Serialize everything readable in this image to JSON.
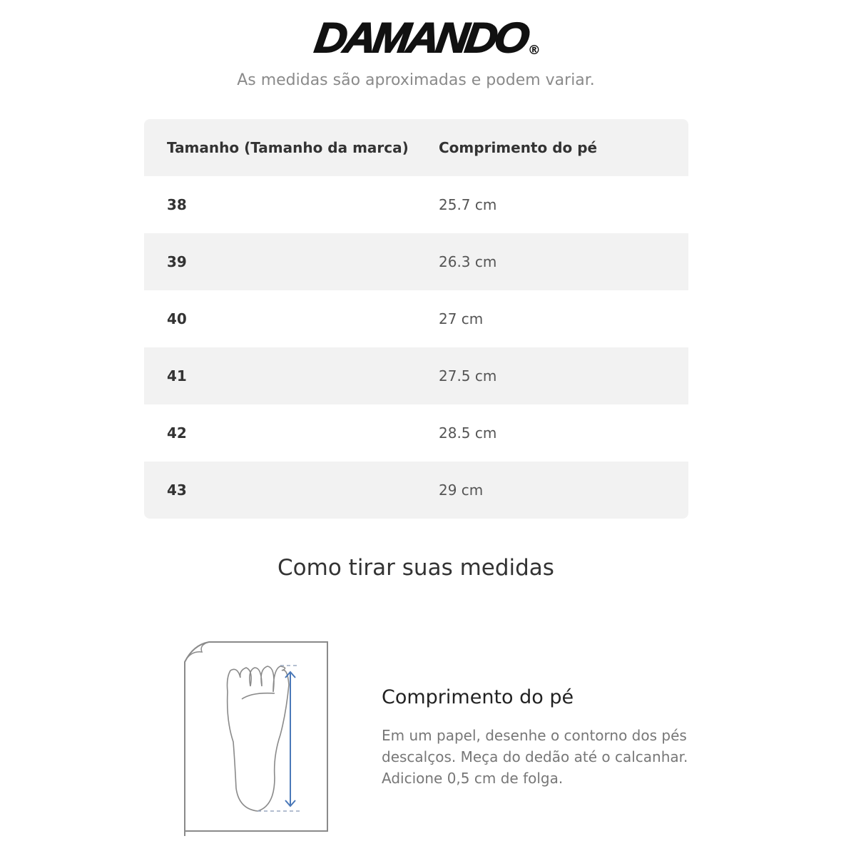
{
  "brand": {
    "logo": "DAMANDO",
    "registered": "®"
  },
  "subtitle": "As medidas são aproximadas e podem variar.",
  "table": {
    "headers": [
      "Tamanho (Tamanho da marca)",
      "Comprimento do pé"
    ],
    "rows": [
      {
        "size": "38",
        "length": "25.7 cm"
      },
      {
        "size": "39",
        "length": "26.3 cm"
      },
      {
        "size": "40",
        "length": "27 cm"
      },
      {
        "size": "41",
        "length": "27.5 cm"
      },
      {
        "size": "42",
        "length": "28.5 cm"
      },
      {
        "size": "43",
        "length": "29 cm"
      }
    ]
  },
  "howto": {
    "title": "Como tirar suas medidas",
    "measure_title": "Comprimento do pé",
    "measure_text": "Em um papel, desenhe o contorno dos pés descalços. Meça do dedão até o calcanhar. Adicione 0,5 cm de folga.",
    "arrow_color": "#4a78b8"
  }
}
